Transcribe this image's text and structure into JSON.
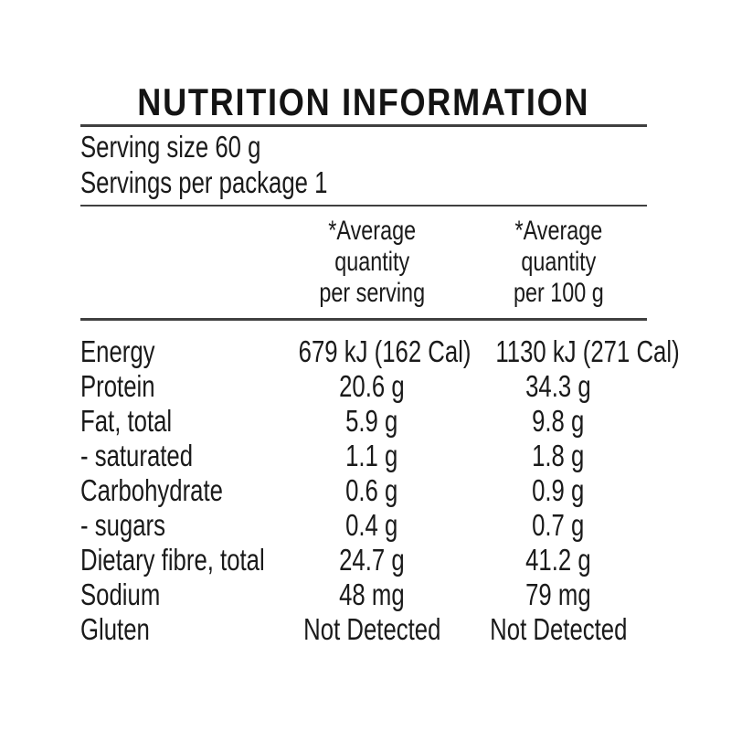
{
  "title": "NUTRITION INFORMATION",
  "serving": {
    "size_line": "Serving size 60 g",
    "per_package_line": "Servings per package 1"
  },
  "columns": {
    "per_serving_header": "*Average\nquantity\nper serving",
    "per_100g_header": "*Average\nquantity\nper 100 g"
  },
  "table": {
    "rows": [
      {
        "label": "Energy",
        "per_serving": "679 kJ (162 Cal)",
        "per_100g": "1130 kJ (271 Cal)"
      },
      {
        "label": "Protein",
        "per_serving": "20.6 g",
        "per_100g": "34.3 g"
      },
      {
        "label": "Fat, total",
        "per_serving": "5.9 g",
        "per_100g": "9.8 g"
      },
      {
        "label": "- saturated",
        "per_serving": "1.1 g",
        "per_100g": "1.8 g"
      },
      {
        "label": "Carbohydrate",
        "per_serving": "0.6 g",
        "per_100g": "0.9 g"
      },
      {
        "label": "- sugars",
        "per_serving": "0.4 g",
        "per_100g": "0.7 g"
      },
      {
        "label": "Dietary fibre, total",
        "per_serving": "24.7 g",
        "per_100g": "41.2 g"
      },
      {
        "label": "Sodium",
        "per_serving": "48 mg",
        "per_100g": "79 mg"
      },
      {
        "label": "Gluten",
        "per_serving": "Not Detected",
        "per_100g": "Not Detected"
      }
    ]
  },
  "colors": {
    "text": "#1a1a1a",
    "rule": "#404040",
    "background": "#ffffff"
  }
}
